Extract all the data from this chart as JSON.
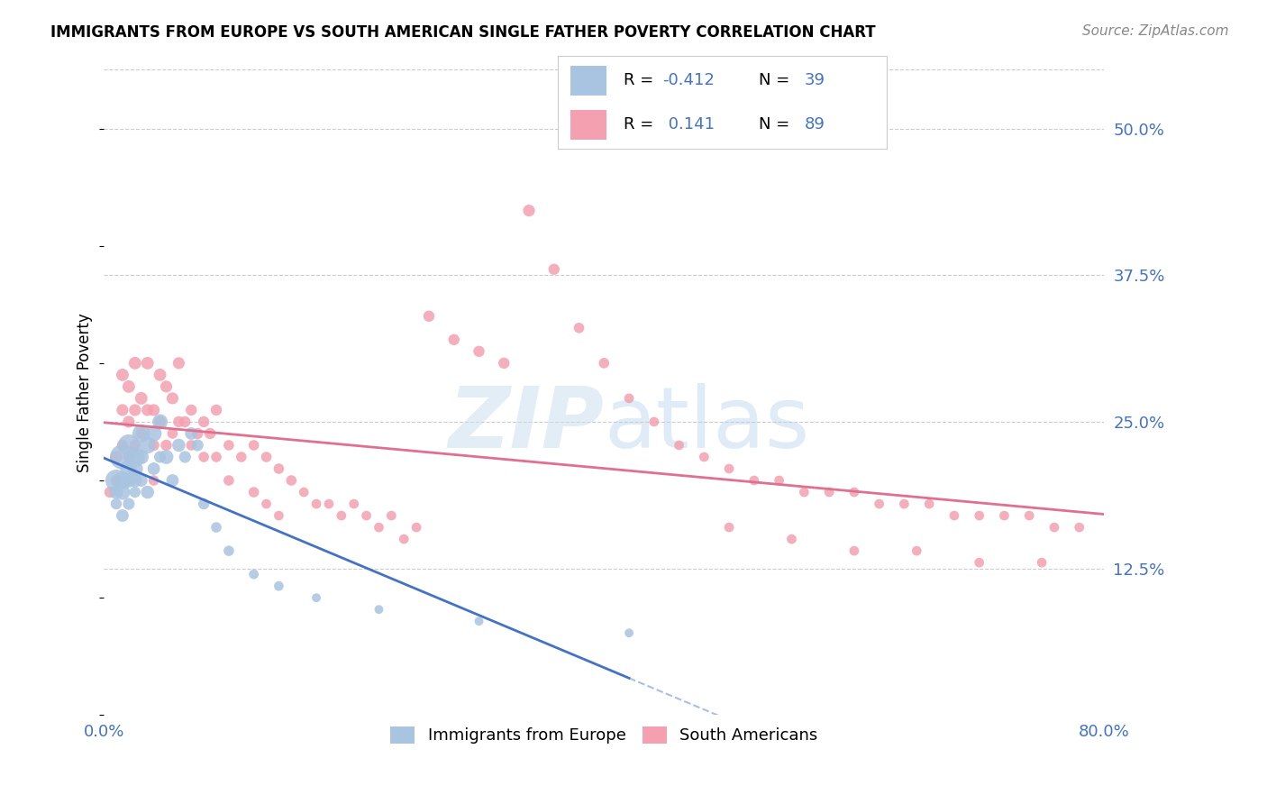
{
  "title": "IMMIGRANTS FROM EUROPE VS SOUTH AMERICAN SINGLE FATHER POVERTY CORRELATION CHART",
  "source": "Source: ZipAtlas.com",
  "ylabel": "Single Father Poverty",
  "yticks": [
    "50.0%",
    "37.5%",
    "25.0%",
    "12.5%"
  ],
  "ytick_vals": [
    0.5,
    0.375,
    0.25,
    0.125
  ],
  "xlim": [
    0.0,
    0.8
  ],
  "ylim": [
    0.0,
    0.55
  ],
  "color_europe": "#a8c4e0",
  "color_south": "#f4a0b0",
  "color_blue": "#4472c4",
  "color_pink": "#e07090",
  "color_text_blue": "#4472c4",
  "europe_x": [
    0.01,
    0.01,
    0.01,
    0.015,
    0.015,
    0.015,
    0.015,
    0.02,
    0.02,
    0.02,
    0.02,
    0.025,
    0.025,
    0.025,
    0.025,
    0.03,
    0.03,
    0.03,
    0.035,
    0.035,
    0.04,
    0.04,
    0.045,
    0.045,
    0.05,
    0.055,
    0.06,
    0.065,
    0.07,
    0.075,
    0.08,
    0.09,
    0.1,
    0.12,
    0.14,
    0.17,
    0.22,
    0.3,
    0.42
  ],
  "europe_y": [
    0.2,
    0.19,
    0.18,
    0.22,
    0.2,
    0.19,
    0.17,
    0.23,
    0.21,
    0.2,
    0.18,
    0.22,
    0.21,
    0.2,
    0.19,
    0.24,
    0.22,
    0.2,
    0.23,
    0.19,
    0.24,
    0.21,
    0.25,
    0.22,
    0.22,
    0.2,
    0.23,
    0.22,
    0.24,
    0.23,
    0.18,
    0.16,
    0.14,
    0.12,
    0.11,
    0.1,
    0.09,
    0.08,
    0.07
  ],
  "europe_sizes": [
    300,
    120,
    80,
    400,
    200,
    150,
    100,
    300,
    180,
    130,
    90,
    250,
    160,
    120,
    80,
    200,
    140,
    100,
    180,
    110,
    160,
    100,
    150,
    90,
    130,
    100,
    110,
    90,
    100,
    90,
    80,
    70,
    70,
    60,
    60,
    50,
    50,
    50,
    50
  ],
  "south_x": [
    0.005,
    0.01,
    0.01,
    0.015,
    0.015,
    0.015,
    0.02,
    0.02,
    0.02,
    0.025,
    0.025,
    0.025,
    0.03,
    0.03,
    0.035,
    0.035,
    0.04,
    0.04,
    0.04,
    0.045,
    0.045,
    0.05,
    0.05,
    0.055,
    0.055,
    0.06,
    0.06,
    0.065,
    0.07,
    0.07,
    0.075,
    0.08,
    0.08,
    0.085,
    0.09,
    0.09,
    0.1,
    0.1,
    0.11,
    0.12,
    0.12,
    0.13,
    0.13,
    0.14,
    0.14,
    0.15,
    0.16,
    0.17,
    0.18,
    0.19,
    0.2,
    0.21,
    0.22,
    0.23,
    0.24,
    0.25,
    0.26,
    0.28,
    0.3,
    0.32,
    0.34,
    0.36,
    0.38,
    0.4,
    0.42,
    0.44,
    0.46,
    0.48,
    0.5,
    0.52,
    0.54,
    0.56,
    0.58,
    0.6,
    0.62,
    0.64,
    0.66,
    0.68,
    0.7,
    0.72,
    0.74,
    0.76,
    0.78,
    0.5,
    0.55,
    0.6,
    0.65,
    0.7,
    0.75
  ],
  "south_y": [
    0.19,
    0.22,
    0.2,
    0.29,
    0.26,
    0.23,
    0.28,
    0.25,
    0.22,
    0.3,
    0.26,
    0.23,
    0.27,
    0.24,
    0.3,
    0.26,
    0.26,
    0.23,
    0.2,
    0.29,
    0.25,
    0.28,
    0.23,
    0.27,
    0.24,
    0.3,
    0.25,
    0.25,
    0.26,
    0.23,
    0.24,
    0.25,
    0.22,
    0.24,
    0.26,
    0.22,
    0.23,
    0.2,
    0.22,
    0.23,
    0.19,
    0.22,
    0.18,
    0.21,
    0.17,
    0.2,
    0.19,
    0.18,
    0.18,
    0.17,
    0.18,
    0.17,
    0.16,
    0.17,
    0.15,
    0.16,
    0.34,
    0.32,
    0.31,
    0.3,
    0.43,
    0.38,
    0.33,
    0.3,
    0.27,
    0.25,
    0.23,
    0.22,
    0.21,
    0.2,
    0.2,
    0.19,
    0.19,
    0.19,
    0.18,
    0.18,
    0.18,
    0.17,
    0.17,
    0.17,
    0.17,
    0.16,
    0.16,
    0.16,
    0.15,
    0.14,
    0.14,
    0.13,
    0.13
  ],
  "south_sizes": [
    80,
    100,
    80,
    100,
    90,
    80,
    100,
    90,
    80,
    100,
    90,
    80,
    100,
    80,
    100,
    90,
    90,
    80,
    70,
    100,
    80,
    90,
    80,
    90,
    70,
    90,
    80,
    80,
    80,
    70,
    80,
    80,
    70,
    80,
    80,
    70,
    70,
    70,
    70,
    70,
    70,
    70,
    60,
    70,
    60,
    70,
    60,
    60,
    60,
    60,
    60,
    60,
    60,
    60,
    60,
    60,
    80,
    80,
    80,
    80,
    90,
    80,
    70,
    70,
    60,
    60,
    60,
    60,
    60,
    60,
    60,
    60,
    60,
    60,
    60,
    60,
    60,
    60,
    60,
    60,
    60,
    60,
    60,
    60,
    60,
    60,
    60,
    60,
    60
  ]
}
